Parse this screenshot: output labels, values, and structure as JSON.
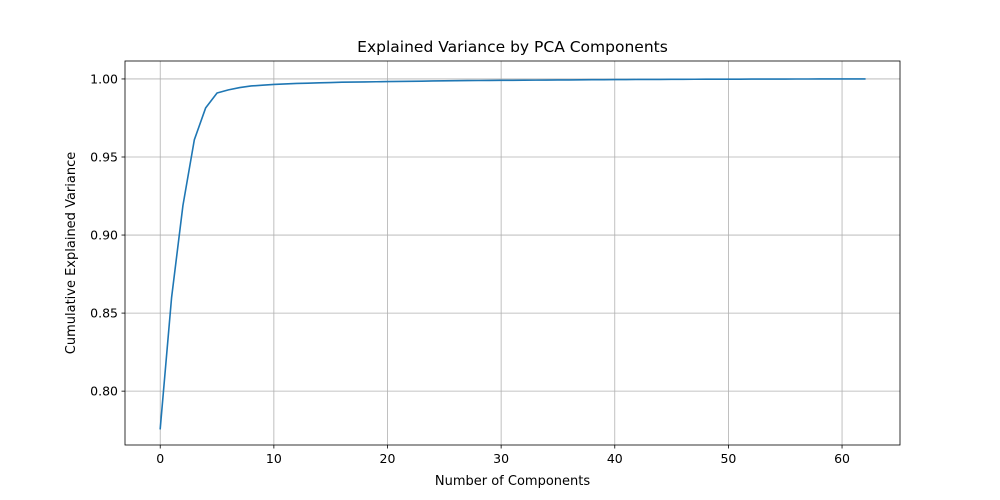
{
  "chart_data": {
    "type": "line",
    "title": "Explained Variance by PCA Components",
    "xlabel": "Number of Components",
    "ylabel": "Cumulative Explained Variance",
    "xlim": [
      -3.1,
      65.1
    ],
    "ylim": [
      0.7655,
      1.0115
    ],
    "x_ticks": [
      0,
      10,
      20,
      30,
      40,
      50,
      60
    ],
    "y_ticks": [
      0.8,
      0.85,
      0.9,
      0.95,
      1.0
    ],
    "x_tick_labels": [
      "0",
      "10",
      "20",
      "30",
      "40",
      "50",
      "60"
    ],
    "y_tick_labels": [
      "0.80",
      "0.85",
      "0.90",
      "0.95",
      "1.00"
    ],
    "grid": true,
    "legend": "none",
    "line_color": "#1f77b4",
    "series": [
      {
        "x": [
          0,
          1,
          2,
          3,
          4,
          5,
          6,
          7,
          8,
          9,
          10,
          11,
          12,
          13,
          14,
          15,
          16,
          17,
          18,
          19,
          20,
          21,
          22,
          23,
          24,
          25,
          26,
          27,
          28,
          29,
          30,
          31,
          32,
          33,
          34,
          35,
          36,
          37,
          38,
          39,
          40,
          41,
          42,
          43,
          44,
          45,
          46,
          47,
          48,
          49,
          50,
          51,
          52,
          53,
          54,
          55,
          56,
          57,
          58,
          59,
          60,
          61,
          62
        ],
        "y": [
          0.776,
          0.86,
          0.919,
          0.961,
          0.9815,
          0.991,
          0.993,
          0.9945,
          0.9955,
          0.996,
          0.9965,
          0.9968,
          0.9971,
          0.9973,
          0.9975,
          0.9977,
          0.9979,
          0.998,
          0.9981,
          0.9982,
          0.9983,
          0.9984,
          0.9985,
          0.9986,
          0.9987,
          0.9988,
          0.9989,
          0.99895,
          0.999,
          0.99905,
          0.9991,
          0.99915,
          0.9992,
          0.99925,
          0.9993,
          0.99935,
          0.9994,
          0.99945,
          0.9995,
          0.99955,
          0.9996,
          0.99963,
          0.99966,
          0.99969,
          0.99972,
          0.99975,
          0.99978,
          0.9998,
          0.99982,
          0.99984,
          0.99986,
          0.99988,
          0.9999,
          0.99992,
          0.99994,
          0.99995,
          0.99996,
          0.99997,
          0.99998,
          0.99999,
          1.0,
          1.0,
          1.0
        ]
      }
    ]
  }
}
